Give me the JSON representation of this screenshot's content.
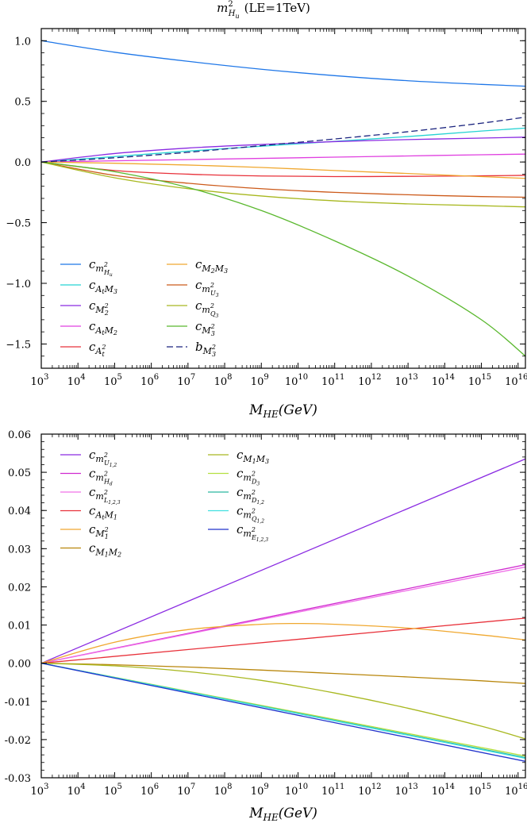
{
  "chart_data": [
    {
      "type": "line",
      "title": "m²_{H_u} (LE=1TeV)",
      "title_parts": {
        "symbol": "m",
        "sup": "2",
        "sub_main": "H",
        "sub_sub": "u",
        "suffix": "(LE=1TeV)"
      },
      "xlabel": "M_HE(GeV)",
      "xlabel_parts": {
        "main": "M",
        "sub": "HE",
        "unit": "(GeV)"
      },
      "ylabel": "",
      "x_scale": "log",
      "x_log_range": [
        3,
        16.2
      ],
      "xticks_exp": [
        3,
        4,
        5,
        6,
        7,
        8,
        9,
        10,
        11,
        12,
        13,
        14,
        15,
        16
      ],
      "xtick_base": "10",
      "ylim": [
        -1.7,
        1.1
      ],
      "yticks": [
        "1.0",
        "0.5",
        "0.0",
        "−0.5",
        "−1.0",
        "−1.5"
      ],
      "ytick_values": [
        1.0,
        0.5,
        0.0,
        -0.5,
        -1.0,
        -1.5
      ],
      "grid": false,
      "legend_position": "lower-left",
      "legend_columns": 2,
      "series": [
        {
          "name": "c_{m²_{H_u}}",
          "color": "#1f77e8",
          "dash": false,
          "x": [
            3,
            5,
            7,
            9,
            11,
            13,
            15,
            16.2
          ],
          "y": [
            1.0,
            0.905,
            0.83,
            0.765,
            0.712,
            0.67,
            0.64,
            0.625
          ]
        },
        {
          "name": "c_{A_t M_3}",
          "color": "#26d3d3",
          "dash": false,
          "x": [
            3,
            5,
            7,
            9,
            11,
            13,
            15,
            16.2
          ],
          "y": [
            0.0,
            0.045,
            0.09,
            0.13,
            0.17,
            0.21,
            0.255,
            0.28
          ]
        },
        {
          "name": "c_{M_2^2}",
          "color": "#8a2be2",
          "dash": false,
          "x": [
            3,
            5,
            7,
            9,
            11,
            13,
            15,
            16.2
          ],
          "y": [
            0.0,
            0.07,
            0.115,
            0.145,
            0.168,
            0.185,
            0.197,
            0.205
          ]
        },
        {
          "name": "c_{A_t M_2}",
          "color": "#e040e0",
          "dash": false,
          "x": [
            3,
            5,
            7,
            9,
            11,
            13,
            15,
            16.2
          ],
          "y": [
            0.0,
            0.01,
            0.02,
            0.03,
            0.04,
            0.05,
            0.06,
            0.065
          ]
        },
        {
          "name": "c_{A_t^2}",
          "color": "#e8313a",
          "dash": false,
          "x": [
            3,
            5,
            7,
            9,
            11,
            13,
            15,
            16.2
          ],
          "y": [
            0.0,
            -0.07,
            -0.1,
            -0.115,
            -0.12,
            -0.118,
            -0.114,
            -0.11
          ]
        },
        {
          "name": "c_{M_2 M_3}",
          "color": "#f0a830",
          "dash": false,
          "x": [
            3,
            5,
            7,
            9,
            11,
            13,
            15,
            16.2
          ],
          "y": [
            0.0,
            -0.01,
            -0.025,
            -0.045,
            -0.07,
            -0.095,
            -0.12,
            -0.135
          ]
        },
        {
          "name": "c_{m²_{U_3}}",
          "color": "#cc5a1a",
          "dash": false,
          "x": [
            3,
            5,
            7,
            9,
            11,
            13,
            15,
            16.2
          ],
          "y": [
            0.0,
            -0.11,
            -0.175,
            -0.22,
            -0.25,
            -0.27,
            -0.285,
            -0.29
          ]
        },
        {
          "name": "c_{m²_{Q_3}}",
          "color": "#a8b820",
          "dash": false,
          "x": [
            3,
            5,
            7,
            9,
            11,
            13,
            15,
            16.2
          ],
          "y": [
            0.0,
            -0.13,
            -0.22,
            -0.28,
            -0.32,
            -0.345,
            -0.36,
            -0.37
          ]
        },
        {
          "name": "c_{M_3^2}",
          "color": "#5ab82e",
          "dash": false,
          "x": [
            3,
            5,
            7,
            9,
            11,
            13,
            15,
            16.2
          ],
          "y": [
            0.0,
            -0.08,
            -0.21,
            -0.4,
            -0.65,
            -0.94,
            -1.3,
            -1.6
          ]
        },
        {
          "name": "b_{M_3^2}",
          "color": "#1a237e",
          "dash": true,
          "x": [
            3,
            5,
            7,
            9,
            11,
            13,
            15,
            16.2
          ],
          "y": [
            0.0,
            0.035,
            0.08,
            0.135,
            0.19,
            0.25,
            0.32,
            0.37
          ]
        }
      ]
    },
    {
      "type": "line",
      "title": "",
      "xlabel": "M_HE(GeV)",
      "xlabel_parts": {
        "main": "M",
        "sub": "HE",
        "unit": "(GeV)"
      },
      "ylabel": "",
      "x_scale": "log",
      "x_log_range": [
        3,
        16.2
      ],
      "xticks_exp": [
        3,
        4,
        5,
        6,
        7,
        8,
        9,
        10,
        11,
        12,
        13,
        14,
        15,
        16
      ],
      "xtick_base": "10",
      "ylim": [
        -0.03,
        0.06
      ],
      "yticks": [
        "0.06",
        "0.05",
        "0.04",
        "0.03",
        "0.02",
        "0.01",
        "0.00",
        "-0.01",
        "-0.02",
        "-0.03"
      ],
      "ytick_values": [
        0.06,
        0.05,
        0.04,
        0.03,
        0.02,
        0.01,
        0.0,
        -0.01,
        -0.02,
        -0.03
      ],
      "grid": false,
      "legend_position": "upper-left",
      "legend_columns": 2,
      "series": [
        {
          "name": "c_{m²_{U_{1,2}}}",
          "color": "#8a2be2",
          "dash": false,
          "x": [
            3,
            16.2
          ],
          "y": [
            0.0,
            0.0535
          ]
        },
        {
          "name": "c_{m²_{H_d}}",
          "color": "#d02ad0",
          "dash": false,
          "x": [
            3,
            16.2
          ],
          "y": [
            0.0,
            0.0258
          ]
        },
        {
          "name": "c_{m²_{L_{1,2,3}}}",
          "color": "#f070e8",
          "dash": false,
          "x": [
            3,
            16.2
          ],
          "y": [
            0.0,
            0.0252
          ]
        },
        {
          "name": "c_{A_t M_1}",
          "color": "#e8313a",
          "dash": false,
          "x": [
            3,
            16.2
          ],
          "y": [
            0.0,
            0.0118
          ]
        },
        {
          "name": "c_{M_1^2}",
          "color": "#f0a830",
          "dash": false,
          "x": [
            3,
            5,
            7,
            9,
            10,
            11,
            13,
            15,
            16.2
          ],
          "y": [
            0.0,
            0.0055,
            0.0088,
            0.0102,
            0.0104,
            0.0102,
            0.0092,
            0.0074,
            0.0061
          ]
        },
        {
          "name": "c_{M_1 M_2}",
          "color": "#b8860b",
          "dash": false,
          "x": [
            3,
            5,
            7,
            9,
            11,
            13,
            15,
            16.2
          ],
          "y": [
            0.0,
            -0.0004,
            -0.001,
            -0.0018,
            -0.0027,
            -0.0036,
            -0.0046,
            -0.0053
          ]
        },
        {
          "name": "c_{M_1 M_3}",
          "color": "#a8b820",
          "dash": false,
          "x": [
            3,
            5,
            7,
            9,
            11,
            13,
            15,
            16.2
          ],
          "y": [
            0.0,
            -0.0007,
            -0.0022,
            -0.0045,
            -0.0078,
            -0.0118,
            -0.0165,
            -0.0198
          ]
        },
        {
          "name": "c_{m²_{D_3}}",
          "color": "#b5e040",
          "dash": false,
          "x": [
            3,
            16.2
          ],
          "y": [
            0.0,
            -0.0243
          ]
        },
        {
          "name": "c_{m²_{D_{1,2}}}",
          "color": "#2ab8a0",
          "dash": false,
          "x": [
            3,
            16.2
          ],
          "y": [
            0.0,
            -0.0247
          ]
        },
        {
          "name": "c_{m²_{Q_{1,2}}}",
          "color": "#40e0e0",
          "dash": false,
          "x": [
            3,
            16.2
          ],
          "y": [
            0.0,
            -0.0249
          ]
        },
        {
          "name": "c_{m²_{E_{1,2,3}}}",
          "color": "#2233cc",
          "dash": false,
          "x": [
            3,
            16.2
          ],
          "y": [
            0.0,
            -0.0257
          ]
        }
      ]
    }
  ],
  "legend_labels": {
    "top": [
      {
        "main": "c",
        "sub": "m",
        "subsup": "2",
        "subsub": "H",
        "subsubsub": "u"
      },
      {
        "main": "c",
        "sub": "A",
        "subsub": "t",
        "sub2": "M",
        "sub2sub": "3"
      },
      {
        "main": "c",
        "sub": "M",
        "subsup": "2",
        "subsub": "2"
      },
      {
        "main": "c",
        "sub": "A",
        "subsub": "t",
        "sub2": "M",
        "sub2sub": "2"
      },
      {
        "main": "c",
        "sub": "A",
        "subsup": "2",
        "subsub": "t"
      },
      {
        "main": "c",
        "sub": "M",
        "subsub": "2",
        "sub2": "M",
        "sub2sub": "3"
      },
      {
        "main": "c",
        "sub": "m",
        "subsup": "2",
        "subsub": "U",
        "subsubsub": "3"
      },
      {
        "main": "c",
        "sub": "m",
        "subsup": "2",
        "subsub": "Q",
        "subsubsub": "3"
      },
      {
        "main": "c",
        "sub": "M",
        "subsup": "2",
        "subsub": "3"
      },
      {
        "main": "b",
        "sub": "M",
        "subsup": "2",
        "subsub": "3"
      }
    ],
    "bottom": [
      {
        "main": "c",
        "sub": "m",
        "subsup": "2",
        "subsub": "U",
        "subsubsub": "1,2"
      },
      {
        "main": "c",
        "sub": "m",
        "subsup": "2",
        "subsub": "H",
        "subsubsub": "d"
      },
      {
        "main": "c",
        "sub": "m",
        "subsup": "2",
        "subsub": "L",
        "subsubsub": "1,2,3"
      },
      {
        "main": "c",
        "sub": "A",
        "subsub": "t",
        "sub2": "M",
        "sub2sub": "1"
      },
      {
        "main": "c",
        "sub": "M",
        "subsup": "2",
        "subsub": "1"
      },
      {
        "main": "c",
        "sub": "M",
        "subsub": "1",
        "sub2": "M",
        "sub2sub": "2"
      },
      {
        "main": "c",
        "sub": "M",
        "subsub": "1",
        "sub2": "M",
        "sub2sub": "3"
      },
      {
        "main": "c",
        "sub": "m",
        "subsup": "2",
        "subsub": "D",
        "subsubsub": "3"
      },
      {
        "main": "c",
        "sub": "m",
        "subsup": "2",
        "subsub": "D",
        "subsubsub": "1,2"
      },
      {
        "main": "c",
        "sub": "m",
        "subsup": "2",
        "subsub": "Q",
        "subsubsub": "1,2"
      },
      {
        "main": "c",
        "sub": "m",
        "subsup": "2",
        "subsub": "E",
        "subsubsub": "1,2,3"
      }
    ]
  }
}
